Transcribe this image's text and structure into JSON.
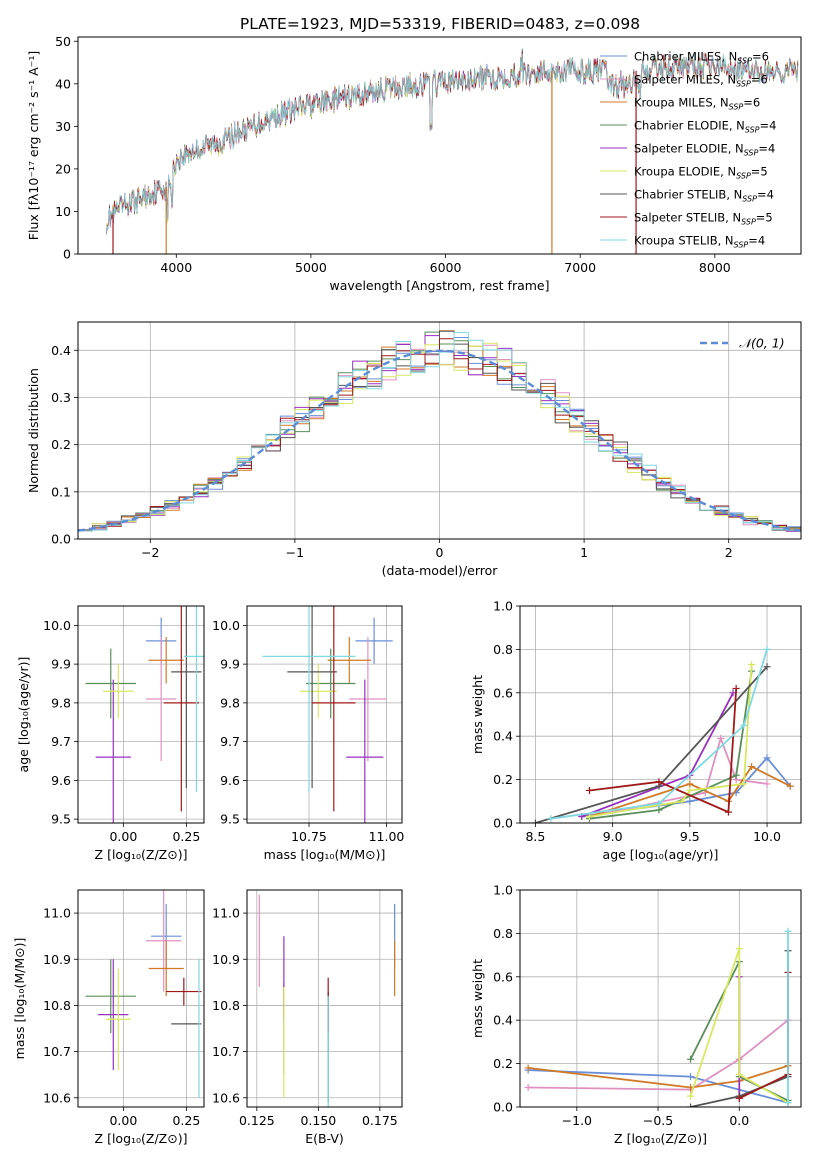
{
  "figure_title": "PLATE=1923, MJD=53319, FIBERID=0483, z=0.098",
  "colors": {
    "Chabrier MILES": "#6a8fd8",
    "Salpeter MILES": "#e090c0",
    "Kroupa MILES": "#d07a28",
    "Chabrier ELODIE": "#5a8f5a",
    "Salpeter ELODIE": "#9a30c0",
    "Kroupa ELODIE": "#d8e860",
    "Chabrier STELIB": "#555555",
    "Salpeter STELIB": "#a01818",
    "Kroupa STELIB": "#80d8e0",
    "normal": "#5b8dd6"
  },
  "chart_data": [
    {
      "id": "spectrum",
      "type": "line",
      "title": "PLATE=1923, MJD=53319, FIBERID=0483, z=0.098",
      "xlabel": "wavelength [Angstrom, rest frame]",
      "ylabel": "Flux [fλ10⁻¹⁷ erg cm⁻² s⁻¹ A⁻¹]",
      "xlim": [
        3270,
        8640
      ],
      "ylim": [
        0,
        51
      ],
      "xticks": [
        4000,
        5000,
        6000,
        7000,
        8000
      ],
      "yticks": [
        0,
        10,
        20,
        30,
        40,
        50
      ],
      "grid": false,
      "legend_position": "right",
      "continuum": {
        "x": [
          3480,
          3600,
          3800,
          3950,
          4000,
          4100,
          4300,
          4500,
          4700,
          5000,
          5300,
          5600,
          5900,
          6200,
          6500,
          6800,
          7100,
          7400,
          7700,
          8000,
          8300,
          8600
        ],
        "y": [
          8,
          11,
          14,
          16,
          22,
          24,
          26,
          29,
          32,
          35,
          37,
          39,
          40,
          41,
          42,
          43,
          43,
          43,
          44,
          44,
          43,
          43
        ]
      },
      "series": [
        {
          "name": "Chabrier MILES",
          "nssp": "6"
        },
        {
          "name": "Salpeter MILES",
          "nssp": "6"
        },
        {
          "name": "Kroupa MILES",
          "nssp": "6"
        },
        {
          "name": "Chabrier ELODIE",
          "nssp": "4"
        },
        {
          "name": "Salpeter ELODIE",
          "nssp": "4"
        },
        {
          "name": "Kroupa ELODIE",
          "nssp": "5"
        },
        {
          "name": "Chabrier STELIB",
          "nssp": "4"
        },
        {
          "name": "Salpeter STELIB",
          "nssp": "5"
        },
        {
          "name": "Kroupa STELIB",
          "nssp": "4"
        }
      ]
    },
    {
      "id": "residuals",
      "type": "histogram",
      "xlabel": "(data-model)/error",
      "ylabel": "Normed distribution",
      "xlim": [
        -2.5,
        2.5
      ],
      "ylim": [
        0,
        0.46
      ],
      "xticks": [
        -2,
        -1,
        0,
        1,
        2
      ],
      "yticks": [
        0.0,
        0.1,
        0.2,
        0.3,
        0.4
      ],
      "grid": true,
      "legend": "𝒩(0, 1)",
      "legend_position": "top-right",
      "bin_width": 0.1
    },
    {
      "id": "age-vs-Z",
      "type": "scatter",
      "xlabel": "Z [log₁₀(Z/Z⊙)]",
      "ylabel": "age  [log₁₀(age/yr)]",
      "xlim": [
        -0.18,
        0.32
      ],
      "ylim": [
        9.49,
        10.05
      ],
      "xticks": [
        0.0,
        0.25
      ],
      "yticks": [
        9.5,
        9.6,
        9.7,
        9.8,
        9.9,
        10.0
      ],
      "grid": true,
      "points": [
        {
          "series": "Chabrier MILES",
          "x": 0.15,
          "y": 9.96,
          "xerr": 0.06,
          "yerr": 0.06
        },
        {
          "series": "Salpeter MILES",
          "x": 0.15,
          "y": 9.81,
          "xerr": 0.06,
          "yerr": 0.16
        },
        {
          "series": "Kroupa MILES",
          "x": 0.17,
          "y": 9.91,
          "xerr": 0.07,
          "yerr": 0.06
        },
        {
          "series": "Chabrier ELODIE",
          "x": -0.05,
          "y": 9.85,
          "xerr": 0.1,
          "yerr": 0.09
        },
        {
          "series": "Salpeter ELODIE",
          "x": -0.04,
          "y": 9.66,
          "xerr": 0.07,
          "yerr": 0.2
        },
        {
          "series": "Kroupa ELODIE",
          "x": -0.02,
          "y": 9.83,
          "xerr": 0.06,
          "yerr": 0.07
        },
        {
          "series": "Chabrier STELIB",
          "x": 0.25,
          "y": 9.88,
          "xerr": 0.06,
          "yerr": 0.3
        },
        {
          "series": "Salpeter STELIB",
          "x": 0.23,
          "y": 9.8,
          "xerr": 0.07,
          "yerr": 0.28
        },
        {
          "series": "Kroupa STELIB",
          "x": 0.29,
          "y": 9.92,
          "xerr": 0.05,
          "yerr": 0.35
        }
      ]
    },
    {
      "id": "age-vs-mass",
      "type": "scatter",
      "xlabel": "mass [log₁₀(M/M⊙)]",
      "ylabel": "",
      "xlim": [
        10.55,
        11.05
      ],
      "ylim": [
        9.49,
        10.05
      ],
      "xticks": [
        10.75,
        11.0
      ],
      "yticks": [
        9.5,
        9.6,
        9.7,
        9.8,
        9.9,
        10.0
      ],
      "grid": true,
      "points": [
        {
          "series": "Chabrier MILES",
          "x": 10.96,
          "y": 9.96,
          "xerr": 0.06,
          "yerr": 0.06
        },
        {
          "series": "Salpeter MILES",
          "x": 10.94,
          "y": 9.81,
          "xerr": 0.06,
          "yerr": 0.16
        },
        {
          "series": "Kroupa MILES",
          "x": 10.88,
          "y": 9.91,
          "xerr": 0.07,
          "yerr": 0.06
        },
        {
          "series": "Chabrier ELODIE",
          "x": 10.82,
          "y": 9.85,
          "xerr": 0.08,
          "yerr": 0.09
        },
        {
          "series": "Salpeter ELODIE",
          "x": 10.93,
          "y": 9.66,
          "xerr": 0.06,
          "yerr": 0.2
        },
        {
          "series": "Kroupa ELODIE",
          "x": 10.78,
          "y": 9.83,
          "xerr": 0.06,
          "yerr": 0.07
        },
        {
          "series": "Chabrier STELIB",
          "x": 10.76,
          "y": 9.88,
          "xerr": 0.08,
          "yerr": 0.3
        },
        {
          "series": "Salpeter STELIB",
          "x": 10.83,
          "y": 9.8,
          "xerr": 0.07,
          "yerr": 0.28
        },
        {
          "series": "Kroupa STELIB",
          "x": 10.75,
          "y": 9.92,
          "xerr": 0.15,
          "yerr": 0.35
        }
      ]
    },
    {
      "id": "weight-vs-age",
      "type": "line",
      "xlabel": "age  [log₁₀(age/yr)]",
      "ylabel": "mass weight",
      "xlim": [
        8.4,
        10.22
      ],
      "ylim": [
        0,
        1.0
      ],
      "xticks": [
        8.5,
        9.0,
        9.5,
        10.0
      ],
      "yticks": [
        0.0,
        0.2,
        0.4,
        0.6,
        0.8,
        1.0
      ],
      "grid": true,
      "series": [
        {
          "name": "Chabrier MILES",
          "x": [
            8.8,
            9.5,
            9.8,
            10.0,
            10.15
          ],
          "y": [
            0.03,
            0.1,
            0.14,
            0.3,
            0.17
          ]
        },
        {
          "name": "Salpeter MILES",
          "x": [
            8.85,
            9.6,
            9.7,
            9.8,
            10.0
          ],
          "y": [
            0.03,
            0.14,
            0.39,
            0.2,
            0.18
          ]
        },
        {
          "name": "Kroupa MILES",
          "x": [
            8.85,
            9.5,
            9.75,
            9.9,
            10.15
          ],
          "y": [
            0.03,
            0.18,
            0.1,
            0.26,
            0.17
          ]
        },
        {
          "name": "Chabrier ELODIE",
          "x": [
            8.85,
            9.3,
            9.8,
            9.9
          ],
          "y": [
            0.02,
            0.06,
            0.22,
            0.7
          ]
        },
        {
          "name": "Salpeter ELODIE",
          "x": [
            8.8,
            9.5,
            9.78
          ],
          "y": [
            0.03,
            0.22,
            0.6
          ]
        },
        {
          "name": "Kroupa ELODIE",
          "x": [
            8.85,
            9.45,
            9.5,
            9.85,
            9.9
          ],
          "y": [
            0.03,
            0.1,
            0.15,
            0.18,
            0.73
          ]
        },
        {
          "name": "Chabrier STELIB",
          "x": [
            8.5,
            9.3,
            10.0
          ],
          "y": [
            0.0,
            0.17,
            0.72
          ]
        },
        {
          "name": "Salpeter STELIB",
          "x": [
            8.85,
            9.3,
            9.75,
            9.8
          ],
          "y": [
            0.15,
            0.19,
            0.05,
            0.62
          ]
        },
        {
          "name": "Kroupa STELIB",
          "x": [
            8.6,
            9.3,
            9.85,
            10.0
          ],
          "y": [
            0.02,
            0.09,
            0.45,
            0.8
          ]
        }
      ]
    },
    {
      "id": "mass-vs-Z",
      "type": "scatter",
      "xlabel": "Z [log₁₀(Z/Z⊙)]",
      "ylabel": "mass [log₁₀(M/M⊙)]",
      "xlim": [
        -0.18,
        0.32
      ],
      "ylim": [
        10.58,
        11.05
      ],
      "xticks": [
        0.0,
        0.25
      ],
      "yticks": [
        10.6,
        10.7,
        10.8,
        10.9,
        11.0
      ],
      "grid": true,
      "points": [
        {
          "series": "Chabrier MILES",
          "x": 0.17,
          "y": 10.95,
          "xerr": 0.06,
          "yerr": 0.07
        },
        {
          "series": "Salpeter MILES",
          "x": 0.16,
          "y": 10.94,
          "xerr": 0.07,
          "yerr": 0.11
        },
        {
          "series": "Kroupa MILES",
          "x": 0.17,
          "y": 10.88,
          "xerr": 0.07,
          "yerr": 0.06
        },
        {
          "series": "Chabrier ELODIE",
          "x": -0.05,
          "y": 10.82,
          "xerr": 0.1,
          "yerr": 0.08
        },
        {
          "series": "Salpeter ELODIE",
          "x": -0.04,
          "y": 10.78,
          "xerr": 0.06,
          "yerr": 0.12
        },
        {
          "series": "Kroupa ELODIE",
          "x": -0.02,
          "y": 10.77,
          "xerr": 0.05,
          "yerr": 0.11
        },
        {
          "series": "Chabrier STELIB",
          "x": 0.25,
          "y": 10.76,
          "xerr": 0.06,
          "yerr": 0.0
        },
        {
          "series": "Salpeter STELIB",
          "x": 0.24,
          "y": 10.83,
          "xerr": 0.07,
          "yerr": 0.03
        },
        {
          "series": "Kroupa STELIB",
          "x": 0.3,
          "y": 10.75,
          "xerr": 0.0,
          "yerr": 0.15
        }
      ]
    },
    {
      "id": "mass-vs-ebv",
      "type": "scatter",
      "xlabel": "E(B-V)",
      "ylabel": "",
      "xlim": [
        0.121,
        0.184
      ],
      "ylim": [
        10.58,
        11.05
      ],
      "xticks": [
        0.125,
        0.15,
        0.175
      ],
      "yticks": [
        10.6,
        10.7,
        10.8,
        10.9,
        11.0
      ],
      "grid": true,
      "points": [
        {
          "series": "Chabrier MILES",
          "x": 0.181,
          "y": 10.95,
          "xerr": 0.0,
          "yerr": 0.07
        },
        {
          "series": "Salpeter MILES",
          "x": 0.126,
          "y": 10.94,
          "xerr": 0.0,
          "yerr": 0.1
        },
        {
          "series": "Kroupa MILES",
          "x": 0.181,
          "y": 10.88,
          "xerr": 0.0,
          "yerr": 0.06
        },
        {
          "series": "Chabrier ELODIE",
          "x": 0.136,
          "y": 10.75,
          "xerr": 0.0,
          "yerr": 0.1
        },
        {
          "series": "Salpeter ELODIE",
          "x": 0.136,
          "y": 10.86,
          "xerr": 0.0,
          "yerr": 0.09
        },
        {
          "series": "Kroupa ELODIE",
          "x": 0.136,
          "y": 10.72,
          "xerr": 0.0,
          "yerr": 0.12
        },
        {
          "series": "Chabrier STELIB",
          "x": 0.154,
          "y": 10.71,
          "xerr": 0.0,
          "yerr": 0.12
        },
        {
          "series": "Salpeter STELIB",
          "x": 0.154,
          "y": 10.8,
          "xerr": 0.0,
          "yerr": 0.06
        },
        {
          "series": "Kroupa STELIB",
          "x": 0.154,
          "y": 10.7,
          "xerr": 0.0,
          "yerr": 0.12
        }
      ]
    },
    {
      "id": "weight-vs-Z",
      "type": "line",
      "xlabel": "Z [log₁₀(Z/Z⊙)]",
      "ylabel": "mass weight",
      "xlim": [
        -1.35,
        0.38
      ],
      "ylim": [
        0,
        1.0
      ],
      "xticks": [
        -1.0,
        -0.5,
        0.0
      ],
      "yticks": [
        0.0,
        0.2,
        0.4,
        0.6,
        0.8,
        1.0
      ],
      "grid": true,
      "series": [
        {
          "name": "Chabrier MILES",
          "x": [
            -1.3,
            -0.3,
            0.3
          ],
          "y": [
            0.17,
            0.14,
            0.02
          ]
        },
        {
          "name": "Salpeter MILES",
          "x": [
            -1.3,
            -0.3,
            0.0,
            0.3
          ],
          "y": [
            0.09,
            0.08,
            0.22,
            0.4
          ]
        },
        {
          "name": "Kroupa MILES",
          "x": [
            -1.3,
            -0.3,
            0.0,
            0.3
          ],
          "y": [
            0.18,
            0.09,
            0.12,
            0.19
          ]
        },
        {
          "name": "Chabrier ELODIE",
          "x": [
            -0.3,
            0.0,
            0.0,
            0.3
          ],
          "y": [
            0.22,
            0.67,
            0.14,
            0.03
          ]
        },
        {
          "name": "Salpeter ELODIE",
          "x": [
            0.0,
            0.0
          ],
          "y": [
            0.6,
            0.04
          ]
        },
        {
          "name": "Kroupa ELODIE",
          "x": [
            -0.3,
            0.0,
            0.0,
            0.3
          ],
          "y": [
            0.05,
            0.73,
            0.15,
            0.02
          ]
        },
        {
          "name": "Chabrier STELIB",
          "x": [
            -0.3,
            0.0,
            0.3,
            0.3
          ],
          "y": [
            0.0,
            0.05,
            0.14,
            0.72
          ]
        },
        {
          "name": "Salpeter STELIB",
          "x": [
            0.0,
            0.3,
            0.3
          ],
          "y": [
            0.04,
            0.15,
            0.62
          ]
        },
        {
          "name": "Kroupa STELIB",
          "x": [
            0.3,
            0.3
          ],
          "y": [
            0.02,
            0.81
          ]
        }
      ]
    }
  ]
}
